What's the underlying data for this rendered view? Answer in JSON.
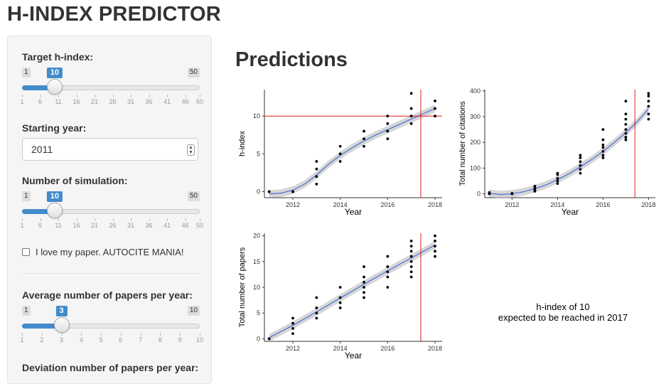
{
  "app_title": "H-INDEX PREDICTOR",
  "sidebar": {
    "target_h_index": {
      "label": "Target h-index:",
      "min": 1,
      "max": 50,
      "value": 10,
      "ticks": [
        "1",
        "6",
        "11",
        "16",
        "21",
        "26",
        "31",
        "36",
        "41",
        "46",
        "50"
      ]
    },
    "starting_year": {
      "label": "Starting year:",
      "value": "2011"
    },
    "num_simulation": {
      "label": "Number of simulation:",
      "min": 1,
      "max": 50,
      "value": 10,
      "ticks": [
        "1",
        "6",
        "11",
        "16",
        "21",
        "26",
        "31",
        "36",
        "41",
        "46",
        "50"
      ]
    },
    "autocite": {
      "label": "I love my paper. AUTOCITE MANIA!",
      "checked": false
    },
    "avg_papers": {
      "label": "Average number of papers per year:",
      "min": 1,
      "max": 10,
      "value": 3,
      "ticks": [
        "1",
        "2",
        "3",
        "4",
        "5",
        "6",
        "7",
        "8",
        "9",
        "10"
      ]
    },
    "dev_papers": {
      "label": "Deviation number of papers per year:"
    }
  },
  "main": {
    "title": "Predictions",
    "summary_line1": "h-index of  10",
    "summary_line2": "expected to be reached in 2017"
  },
  "chart_data": [
    {
      "type": "scatter",
      "title": "",
      "xlabel": "Year",
      "ylabel": "h-index",
      "xlim": [
        2010.8,
        2018.3
      ],
      "ylim": [
        -0.8,
        13.5
      ],
      "xticks": [
        "2012",
        "2014",
        "2016",
        "2018"
      ],
      "yticks": [
        "0",
        "5",
        "10"
      ],
      "points": [
        [
          2011,
          0
        ],
        [
          2011,
          0
        ],
        [
          2012,
          0
        ],
        [
          2012,
          0
        ],
        [
          2013,
          1
        ],
        [
          2013,
          2
        ],
        [
          2013,
          3
        ],
        [
          2013,
          4
        ],
        [
          2014,
          4
        ],
        [
          2014,
          5
        ],
        [
          2014,
          6
        ],
        [
          2015,
          6
        ],
        [
          2015,
          7
        ],
        [
          2015,
          8
        ],
        [
          2016,
          7
        ],
        [
          2016,
          8
        ],
        [
          2016,
          9
        ],
        [
          2016,
          10
        ],
        [
          2017,
          9
        ],
        [
          2017,
          10
        ],
        [
          2017,
          11
        ],
        [
          2017,
          13
        ],
        [
          2018,
          10
        ],
        [
          2018,
          11
        ],
        [
          2018,
          12
        ]
      ],
      "trend": [
        [
          2011,
          -0.3
        ],
        [
          2011.5,
          -0.2
        ],
        [
          2012,
          0.2
        ],
        [
          2012.5,
          1.0
        ],
        [
          2013,
          2.2
        ],
        [
          2013.5,
          3.6
        ],
        [
          2014,
          4.8
        ],
        [
          2014.5,
          5.8
        ],
        [
          2015,
          6.7
        ],
        [
          2015.5,
          7.5
        ],
        [
          2016,
          8.2
        ],
        [
          2016.5,
          8.9
        ],
        [
          2017,
          9.6
        ],
        [
          2017.5,
          10.3
        ],
        [
          2018,
          11.0
        ]
      ],
      "hline": 10,
      "vline": 2017.4,
      "line_color": "#e41a1c",
      "trend_color": "#4a6fd8"
    },
    {
      "type": "scatter",
      "title": "",
      "xlabel": "Year",
      "ylabel": "Total number of citations",
      "xlim": [
        2010.8,
        2018.3
      ],
      "ylim": [
        -15,
        405
      ],
      "xticks": [
        "2012",
        "2014",
        "2016",
        "2018"
      ],
      "yticks": [
        "0",
        "100",
        "200",
        "300",
        "400"
      ],
      "points": [
        [
          2011,
          0
        ],
        [
          2011,
          2
        ],
        [
          2011,
          5
        ],
        [
          2012,
          0
        ],
        [
          2012,
          2
        ],
        [
          2013,
          10
        ],
        [
          2013,
          15
        ],
        [
          2013,
          22
        ],
        [
          2013,
          30
        ],
        [
          2014,
          40
        ],
        [
          2014,
          50
        ],
        [
          2014,
          60
        ],
        [
          2014,
          75
        ],
        [
          2014,
          80
        ],
        [
          2015,
          80
        ],
        [
          2015,
          95
        ],
        [
          2015,
          110
        ],
        [
          2015,
          125
        ],
        [
          2015,
          140
        ],
        [
          2015,
          150
        ],
        [
          2016,
          140
        ],
        [
          2016,
          150
        ],
        [
          2016,
          165
        ],
        [
          2016,
          180
        ],
        [
          2016,
          190
        ],
        [
          2016,
          210
        ],
        [
          2016,
          250
        ],
        [
          2017,
          210
        ],
        [
          2017,
          220
        ],
        [
          2017,
          235
        ],
        [
          2017,
          250
        ],
        [
          2017,
          270
        ],
        [
          2017,
          290
        ],
        [
          2017,
          310
        ],
        [
          2017,
          360
        ],
        [
          2018,
          290
        ],
        [
          2018,
          310
        ],
        [
          2018,
          340
        ],
        [
          2018,
          360
        ],
        [
          2018,
          380
        ],
        [
          2018,
          390
        ]
      ],
      "trend": [
        [
          2011,
          2
        ],
        [
          2011.5,
          -3
        ],
        [
          2012,
          0
        ],
        [
          2012.5,
          8
        ],
        [
          2013,
          20
        ],
        [
          2013.5,
          35
        ],
        [
          2014,
          55
        ],
        [
          2014.5,
          78
        ],
        [
          2015,
          105
        ],
        [
          2015.5,
          133
        ],
        [
          2016,
          165
        ],
        [
          2016.5,
          200
        ],
        [
          2017,
          238
        ],
        [
          2017.5,
          280
        ],
        [
          2018,
          330
        ]
      ],
      "vline": 2017.4,
      "line_color": "#e41a1c",
      "trend_color": "#4a6fd8"
    },
    {
      "type": "scatter",
      "title": "",
      "xlabel": "Year",
      "ylabel": "Total number of papers",
      "xlim": [
        2010.8,
        2018.3
      ],
      "ylim": [
        -0.5,
        20.5
      ],
      "xticks": [
        "2012",
        "2014",
        "2016",
        "2018"
      ],
      "yticks": [
        "0",
        "5",
        "10",
        "15",
        "20"
      ],
      "points": [
        [
          2011,
          0
        ],
        [
          2011,
          0
        ],
        [
          2012,
          1
        ],
        [
          2012,
          2
        ],
        [
          2012,
          3
        ],
        [
          2012,
          4
        ],
        [
          2013,
          4
        ],
        [
          2013,
          5
        ],
        [
          2013,
          6
        ],
        [
          2013,
          8
        ],
        [
          2014,
          6
        ],
        [
          2014,
          7
        ],
        [
          2014,
          8
        ],
        [
          2014,
          10
        ],
        [
          2015,
          8
        ],
        [
          2015,
          9
        ],
        [
          2015,
          10
        ],
        [
          2015,
          11
        ],
        [
          2015,
          12
        ],
        [
          2015,
          14
        ],
        [
          2016,
          10
        ],
        [
          2016,
          12
        ],
        [
          2016,
          13
        ],
        [
          2016,
          14
        ],
        [
          2016,
          16
        ],
        [
          2017,
          12
        ],
        [
          2017,
          13
        ],
        [
          2017,
          14
        ],
        [
          2017,
          15
        ],
        [
          2017,
          16
        ],
        [
          2017,
          17
        ],
        [
          2017,
          18
        ],
        [
          2017,
          19
        ],
        [
          2018,
          16
        ],
        [
          2018,
          17
        ],
        [
          2018,
          18
        ],
        [
          2018,
          19
        ],
        [
          2018,
          20
        ]
      ],
      "trend": [
        [
          2011,
          0.2
        ],
        [
          2012,
          2.6
        ],
        [
          2013,
          5.2
        ],
        [
          2014,
          7.9
        ],
        [
          2015,
          10.6
        ],
        [
          2016,
          13.2
        ],
        [
          2017,
          15.7
        ],
        [
          2018,
          18.2
        ]
      ],
      "vline": 2017.4,
      "line_color": "#e41a1c",
      "trend_color": "#4a6fd8"
    }
  ]
}
